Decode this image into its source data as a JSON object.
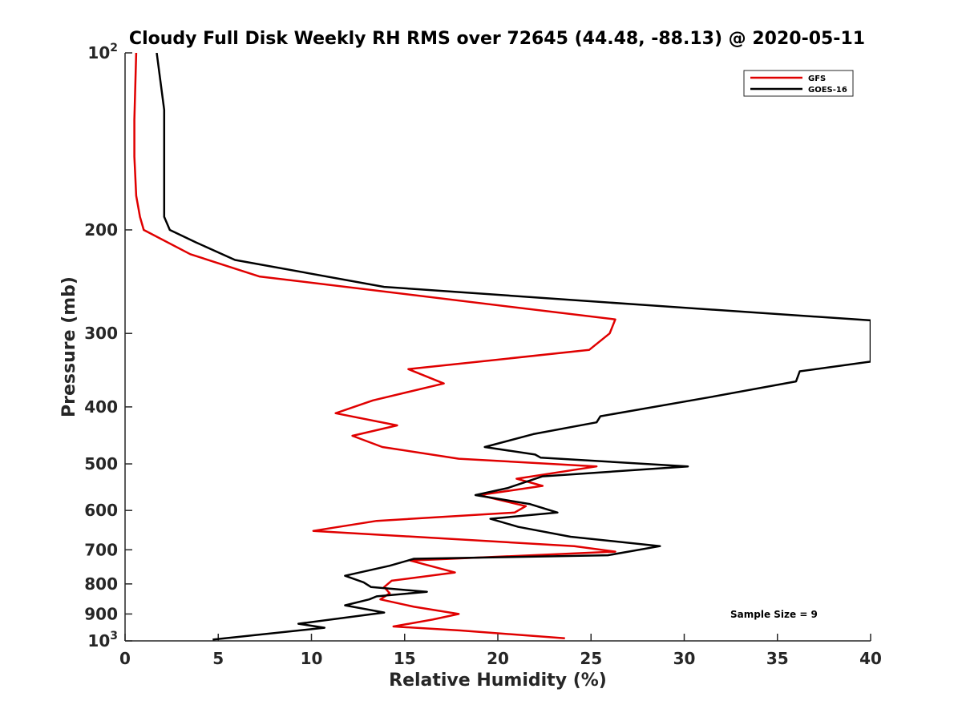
{
  "chart_data": {
    "type": "line",
    "title": "Cloudy Full Disk Weekly RH RMS over 72645 (44.48, -88.13) @ 2020-05-11",
    "xlabel": "Relative Humidity (%)",
    "ylabel": "Pressure (mb)",
    "xlim": [
      0,
      40
    ],
    "ylim": [
      100,
      1000
    ],
    "yscale": "log",
    "y_reversed": true,
    "grid": false,
    "legend_position": "top-right",
    "xticks": [
      {
        "value": 0,
        "label": "0"
      },
      {
        "value": 5,
        "label": "5"
      },
      {
        "value": 10,
        "label": "10"
      },
      {
        "value": 15,
        "label": "15"
      },
      {
        "value": 20,
        "label": "20"
      },
      {
        "value": 25,
        "label": "25"
      },
      {
        "value": 30,
        "label": "30"
      },
      {
        "value": 35,
        "label": "35"
      },
      {
        "value": 40,
        "label": "40"
      }
    ],
    "yticks": [
      {
        "value": 100,
        "base": "10",
        "exp": "2"
      },
      {
        "value": 200,
        "base": "200",
        "exp": ""
      },
      {
        "value": 300,
        "base": "300",
        "exp": ""
      },
      {
        "value": 400,
        "base": "400",
        "exp": ""
      },
      {
        "value": 500,
        "base": "500",
        "exp": ""
      },
      {
        "value": 600,
        "base": "600",
        "exp": ""
      },
      {
        "value": 700,
        "base": "700",
        "exp": ""
      },
      {
        "value": 800,
        "base": "800",
        "exp": ""
      },
      {
        "value": 900,
        "base": "900",
        "exp": ""
      },
      {
        "value": 1000,
        "base": "10",
        "exp": "3"
      }
    ],
    "series": [
      {
        "name": "GFS",
        "color": "#e00000",
        "points": [
          [
            0.6,
            100
          ],
          [
            0.5,
            130
          ],
          [
            0.5,
            150
          ],
          [
            0.6,
            175
          ],
          [
            0.8,
            190
          ],
          [
            1.0,
            200
          ],
          [
            3.5,
            220
          ],
          [
            7.2,
            240
          ],
          [
            26.3,
            284
          ],
          [
            26.0,
            300
          ],
          [
            24.9,
            320
          ],
          [
            15.2,
            345
          ],
          [
            17.1,
            365
          ],
          [
            13.3,
            390
          ],
          [
            11.3,
            410
          ],
          [
            14.6,
            430
          ],
          [
            12.2,
            448
          ],
          [
            13.8,
            468
          ],
          [
            17.9,
            490
          ],
          [
            25.3,
            505
          ],
          [
            21.0,
            530
          ],
          [
            22.4,
            545
          ],
          [
            19.0,
            565
          ],
          [
            21.5,
            590
          ],
          [
            20.9,
            605
          ],
          [
            13.5,
            625
          ],
          [
            10.1,
            650
          ],
          [
            24.1,
            690
          ],
          [
            26.3,
            705
          ],
          [
            15.3,
            730
          ],
          [
            17.7,
            765
          ],
          [
            14.3,
            790
          ],
          [
            13.9,
            810
          ],
          [
            14.2,
            830
          ],
          [
            13.7,
            850
          ],
          [
            15.5,
            875
          ],
          [
            17.9,
            900
          ],
          [
            16.5,
            920
          ],
          [
            14.4,
            945
          ],
          [
            18.0,
            960
          ],
          [
            23.6,
            990
          ]
        ]
      },
      {
        "name": "GOES-16",
        "color": "#000000",
        "points": [
          [
            1.7,
            100
          ],
          [
            2.1,
            125
          ],
          [
            2.1,
            150
          ],
          [
            2.1,
            190
          ],
          [
            2.4,
            200
          ],
          [
            3.8,
            210
          ],
          [
            5.9,
            225
          ],
          [
            13.9,
            250
          ],
          [
            27.6,
            268
          ],
          [
            40.0,
            285
          ],
          [
            40.0,
            335
          ],
          [
            36.2,
            348
          ],
          [
            36.0,
            362
          ],
          [
            31.4,
            385
          ],
          [
            25.5,
            415
          ],
          [
            25.3,
            425
          ],
          [
            21.9,
            445
          ],
          [
            19.3,
            468
          ],
          [
            22.0,
            482
          ],
          [
            22.3,
            488
          ],
          [
            30.2,
            505
          ],
          [
            22.4,
            525
          ],
          [
            20.5,
            550
          ],
          [
            18.8,
            565
          ],
          [
            21.7,
            585
          ],
          [
            23.2,
            605
          ],
          [
            19.6,
            620
          ],
          [
            21.1,
            640
          ],
          [
            23.9,
            665
          ],
          [
            28.7,
            690
          ],
          [
            25.9,
            715
          ],
          [
            15.5,
            725
          ],
          [
            14.2,
            745
          ],
          [
            11.8,
            775
          ],
          [
            12.8,
            795
          ],
          [
            13.2,
            810
          ],
          [
            16.2,
            825
          ],
          [
            13.5,
            840
          ],
          [
            13.1,
            850
          ],
          [
            11.8,
            870
          ],
          [
            13.9,
            895
          ],
          [
            9.3,
            935
          ],
          [
            10.7,
            950
          ],
          [
            4.7,
            995
          ]
        ]
      }
    ],
    "annotations": [
      {
        "text": "Sample Size = 9",
        "x": 34.0,
        "y": 900
      }
    ]
  }
}
